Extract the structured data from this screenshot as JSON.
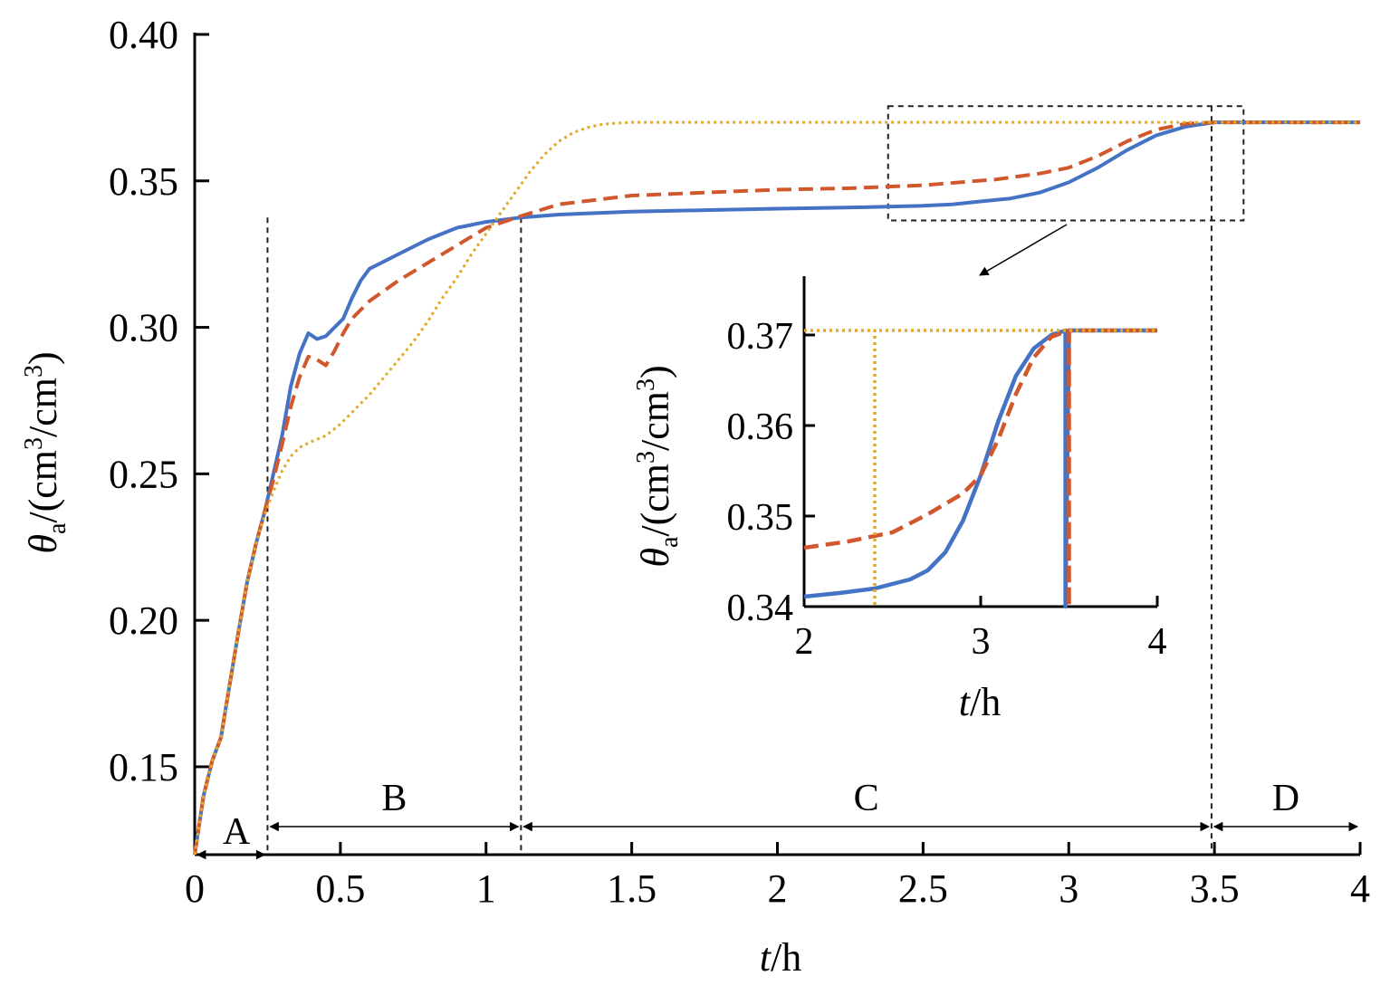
{
  "chart_data": [
    {
      "type": "line",
      "title": "",
      "xlabel_italic": "t",
      "xlabel_unit": "/h",
      "ylabel_symbol": "θ",
      "ylabel_sub": "a",
      "ylabel_unit_a": "/(cm",
      "ylabel_unit_b": "/cm",
      "ylabel_unit_c": ")",
      "ylabel_sup": "3",
      "xlim": [
        0,
        4
      ],
      "ylim": [
        0.12,
        0.4
      ],
      "x_ticks": [
        0,
        0.5,
        1,
        1.5,
        2,
        2.5,
        3,
        3.5,
        4
      ],
      "x_tick_labels": [
        "0",
        "0.5",
        "1",
        "1.5",
        "2",
        "2.5",
        "3",
        "3.5",
        "4"
      ],
      "y_ticks": [
        0.15,
        0.2,
        0.25,
        0.3,
        0.35,
        0.4
      ],
      "y_tick_labels": [
        "0.15",
        "0.20",
        "0.25",
        "0.30",
        "0.35",
        "0.40"
      ],
      "grid": false,
      "series": [
        {
          "style": "solid",
          "color": "#4472c4",
          "x": [
            0,
            0.03,
            0.06,
            0.09,
            0.12,
            0.15,
            0.18,
            0.21,
            0.24,
            0.27,
            0.3,
            0.33,
            0.36,
            0.39,
            0.42,
            0.45,
            0.48,
            0.51,
            0.54,
            0.57,
            0.6,
            0.66,
            0.72,
            0.8,
            0.9,
            1.0,
            1.12,
            1.25,
            1.5,
            1.75,
            2.0,
            2.3,
            2.5,
            2.6,
            2.7,
            2.8,
            2.9,
            3.0,
            3.1,
            3.2,
            3.3,
            3.4,
            3.5,
            3.6,
            3.8,
            4.0
          ],
          "y": [
            0.12,
            0.14,
            0.152,
            0.16,
            0.178,
            0.196,
            0.213,
            0.226,
            0.237,
            0.25,
            0.263,
            0.28,
            0.291,
            0.298,
            0.296,
            0.297,
            0.3,
            0.303,
            0.31,
            0.316,
            0.32,
            0.323,
            0.326,
            0.33,
            0.334,
            0.336,
            0.3375,
            0.3385,
            0.3395,
            0.34,
            0.3405,
            0.341,
            0.3415,
            0.342,
            0.343,
            0.344,
            0.346,
            0.3495,
            0.3545,
            0.3605,
            0.3655,
            0.3685,
            0.37,
            0.37,
            0.37,
            0.37
          ]
        },
        {
          "style": "dashed",
          "color": "#d1582c",
          "x": [
            0,
            0.03,
            0.06,
            0.09,
            0.12,
            0.15,
            0.18,
            0.21,
            0.24,
            0.27,
            0.3,
            0.33,
            0.36,
            0.39,
            0.42,
            0.45,
            0.48,
            0.51,
            0.54,
            0.6,
            0.7,
            0.8,
            0.9,
            1.0,
            1.12,
            1.25,
            1.5,
            1.75,
            2.0,
            2.25,
            2.5,
            2.75,
            2.9,
            3.0,
            3.1,
            3.2,
            3.3,
            3.4,
            3.5,
            3.6,
            3.8,
            4.0
          ],
          "y": [
            0.12,
            0.14,
            0.152,
            0.16,
            0.178,
            0.196,
            0.213,
            0.226,
            0.237,
            0.248,
            0.26,
            0.273,
            0.283,
            0.29,
            0.289,
            0.287,
            0.292,
            0.298,
            0.303,
            0.309,
            0.316,
            0.322,
            0.328,
            0.334,
            0.338,
            0.342,
            0.345,
            0.346,
            0.347,
            0.3475,
            0.3485,
            0.3505,
            0.3525,
            0.3545,
            0.3585,
            0.3635,
            0.3675,
            0.3695,
            0.37,
            0.37,
            0.37,
            0.37
          ]
        },
        {
          "style": "dotted",
          "color": "#e3a928",
          "x": [
            0,
            0.03,
            0.06,
            0.09,
            0.12,
            0.15,
            0.18,
            0.21,
            0.24,
            0.27,
            0.3,
            0.33,
            0.36,
            0.4,
            0.45,
            0.5,
            0.55,
            0.6,
            0.65,
            0.7,
            0.75,
            0.8,
            0.85,
            0.9,
            0.95,
            1.0,
            1.05,
            1.1,
            1.15,
            1.2,
            1.25,
            1.3,
            1.35,
            1.4,
            1.45,
            1.5,
            1.6,
            1.7,
            1.8,
            2.0,
            2.5,
            3.0,
            3.5,
            4.0
          ],
          "y": [
            0.12,
            0.14,
            0.152,
            0.16,
            0.178,
            0.196,
            0.213,
            0.226,
            0.236,
            0.244,
            0.251,
            0.256,
            0.259,
            0.261,
            0.263,
            0.267,
            0.272,
            0.277,
            0.283,
            0.289,
            0.295,
            0.302,
            0.31,
            0.317,
            0.325,
            0.332,
            0.339,
            0.346,
            0.353,
            0.359,
            0.3635,
            0.3665,
            0.3683,
            0.3693,
            0.3697,
            0.37,
            0.37,
            0.37,
            0.37,
            0.37,
            0.37,
            0.37,
            0.37,
            0.37
          ]
        }
      ],
      "boundaries_x": [
        0.25,
        1.12,
        3.49
      ],
      "regions": [
        {
          "label": "A",
          "x_start": 0,
          "x_end": 0.25
        },
        {
          "label": "B",
          "x_start": 0.25,
          "x_end": 1.12
        },
        {
          "label": "C",
          "x_start": 1.12,
          "x_end": 3.49
        },
        {
          "label": "D",
          "x_start": 3.49,
          "x_end": 4.0
        }
      ],
      "zoom_box": {
        "x": [
          2.38,
          3.6
        ],
        "y": [
          0.3365,
          0.3755
        ]
      }
    },
    {
      "type": "line",
      "title": "",
      "xlabel_italic": "t",
      "xlabel_unit": "/h",
      "ylabel_symbol": "θ",
      "ylabel_sub": "a",
      "ylabel_unit_a": "/(cm",
      "ylabel_unit_b": "/cm",
      "ylabel_unit_c": ")",
      "ylabel_sup": "3",
      "xlim": [
        2,
        4
      ],
      "ylim": [
        0.34,
        0.3765
      ],
      "x_ticks": [
        2,
        3,
        4
      ],
      "x_tick_labels": [
        "2",
        "3",
        "4"
      ],
      "y_ticks": [
        0.34,
        0.35,
        0.36,
        0.37
      ],
      "y_tick_labels": [
        "0.34",
        "0.35",
        "0.36",
        "0.37"
      ],
      "grid": false,
      "series": [
        {
          "style": "solid",
          "color": "#4472c4",
          "x": [
            2.0,
            2.2,
            2.4,
            2.6,
            2.7,
            2.8,
            2.9,
            3.0,
            3.1,
            3.2,
            3.3,
            3.4,
            3.48,
            3.48,
            3.5,
            3.7,
            4.0
          ],
          "y": [
            0.3411,
            0.3415,
            0.342,
            0.343,
            0.344,
            0.346,
            0.3495,
            0.3545,
            0.3605,
            0.3655,
            0.3685,
            0.37,
            0.3705,
            0.34,
            0.3705,
            0.3705,
            0.3705
          ]
        },
        {
          "style": "dashed",
          "color": "#d1582c",
          "x": [
            2.0,
            2.25,
            2.5,
            2.7,
            2.9,
            3.0,
            3.1,
            3.2,
            3.3,
            3.4,
            3.5,
            3.5,
            3.5,
            3.7,
            4.0
          ],
          "y": [
            0.3465,
            0.3472,
            0.3482,
            0.3502,
            0.3525,
            0.3545,
            0.3585,
            0.3635,
            0.3675,
            0.3698,
            0.3705,
            0.34,
            0.3705,
            0.3705,
            0.3705
          ]
        },
        {
          "style": "dotted",
          "color": "#e3a928",
          "x": [
            2.0,
            2.4,
            2.4,
            2.4,
            4.0
          ],
          "y": [
            0.3705,
            0.3705,
            0.34,
            0.3705,
            0.3705
          ]
        }
      ]
    }
  ]
}
